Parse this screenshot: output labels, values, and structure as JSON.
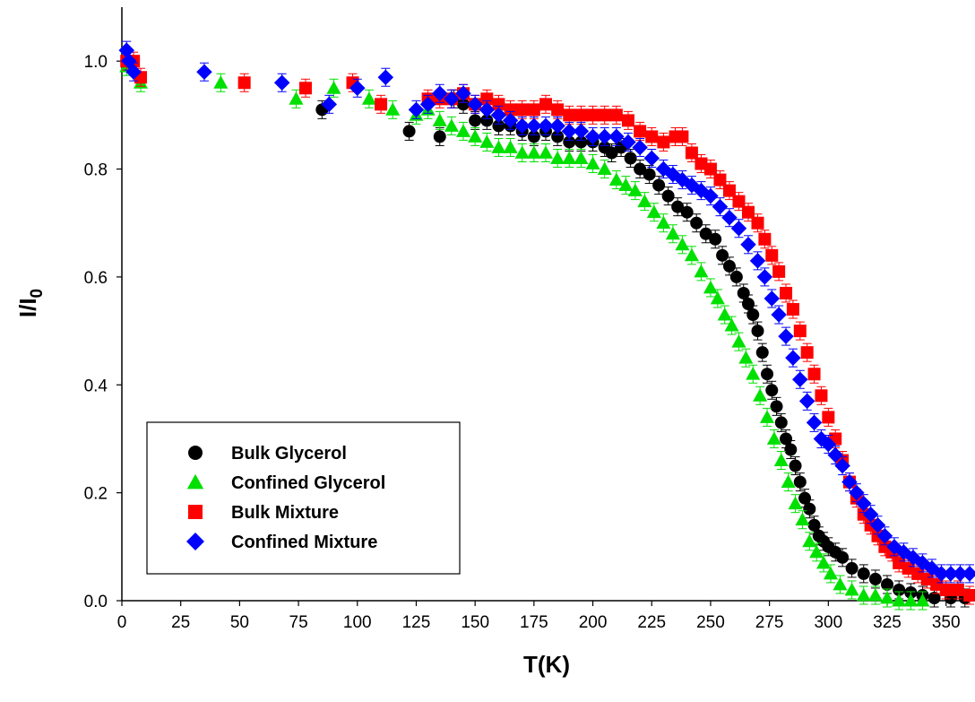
{
  "chart_data": {
    "type": "scatter",
    "title": "",
    "xlabel": "T(K)",
    "ylabel_main": "I/I",
    "ylabel_sub": "0",
    "xlim": [
      0,
      360
    ],
    "ylim": [
      0,
      1.1
    ],
    "xticks": [
      0,
      25,
      50,
      75,
      100,
      125,
      150,
      175,
      200,
      225,
      250,
      275,
      300,
      325,
      350
    ],
    "yticks": [
      0.0,
      0.2,
      0.4,
      0.6,
      0.8,
      1.0
    ],
    "ytick_labels": [
      "0.0",
      "0.2",
      "0.4",
      "0.6",
      "0.8",
      "1.0"
    ],
    "grid": false,
    "legend_position": "bottom-left",
    "series": [
      {
        "name": "Bulk Glycerol",
        "marker": "circle",
        "color": "#000000",
        "points": [
          [
            2,
            1.0
          ],
          [
            85,
            0.91
          ],
          [
            122,
            0.87
          ],
          [
            135,
            0.86
          ],
          [
            141,
            0.93
          ],
          [
            145,
            0.92
          ],
          [
            150,
            0.89
          ],
          [
            155,
            0.89
          ],
          [
            160,
            0.88
          ],
          [
            165,
            0.88
          ],
          [
            170,
            0.87
          ],
          [
            175,
            0.86
          ],
          [
            180,
            0.87
          ],
          [
            185,
            0.86
          ],
          [
            190,
            0.85
          ],
          [
            195,
            0.85
          ],
          [
            200,
            0.85
          ],
          [
            205,
            0.84
          ],
          [
            208,
            0.83
          ],
          [
            212,
            0.84
          ],
          [
            216,
            0.82
          ],
          [
            220,
            0.8
          ],
          [
            224,
            0.79
          ],
          [
            228,
            0.77
          ],
          [
            232,
            0.75
          ],
          [
            236,
            0.73
          ],
          [
            240,
            0.72
          ],
          [
            244,
            0.7
          ],
          [
            248,
            0.68
          ],
          [
            252,
            0.67
          ],
          [
            255,
            0.64
          ],
          [
            258,
            0.62
          ],
          [
            261,
            0.6
          ],
          [
            264,
            0.57
          ],
          [
            266,
            0.55
          ],
          [
            268,
            0.53
          ],
          [
            270,
            0.5
          ],
          [
            272,
            0.46
          ],
          [
            274,
            0.42
          ],
          [
            276,
            0.39
          ],
          [
            278,
            0.36
          ],
          [
            280,
            0.33
          ],
          [
            282,
            0.3
          ],
          [
            284,
            0.28
          ],
          [
            286,
            0.25
          ],
          [
            288,
            0.22
          ],
          [
            290,
            0.19
          ],
          [
            292,
            0.17
          ],
          [
            294,
            0.14
          ],
          [
            296,
            0.12
          ],
          [
            298,
            0.11
          ],
          [
            300,
            0.1
          ],
          [
            303,
            0.09
          ],
          [
            306,
            0.08
          ],
          [
            310,
            0.06
          ],
          [
            315,
            0.05
          ],
          [
            320,
            0.04
          ],
          [
            325,
            0.03
          ],
          [
            330,
            0.02
          ],
          [
            335,
            0.015
          ],
          [
            340,
            0.01
          ],
          [
            345,
            0.005
          ],
          [
            352,
            0.005
          ],
          [
            358,
            0.005
          ]
        ]
      },
      {
        "name": "Confined Glycerol",
        "marker": "triangle",
        "color": "#00e000",
        "points": [
          [
            2,
            0.99
          ],
          [
            8,
            0.96
          ],
          [
            42,
            0.96
          ],
          [
            74,
            0.93
          ],
          [
            90,
            0.95
          ],
          [
            105,
            0.93
          ],
          [
            115,
            0.91
          ],
          [
            125,
            0.9
          ],
          [
            130,
            0.91
          ],
          [
            135,
            0.89
          ],
          [
            140,
            0.88
          ],
          [
            145,
            0.87
          ],
          [
            150,
            0.86
          ],
          [
            155,
            0.85
          ],
          [
            160,
            0.84
          ],
          [
            165,
            0.84
          ],
          [
            170,
            0.83
          ],
          [
            175,
            0.83
          ],
          [
            180,
            0.83
          ],
          [
            185,
            0.82
          ],
          [
            190,
            0.82
          ],
          [
            195,
            0.82
          ],
          [
            200,
            0.81
          ],
          [
            205,
            0.8
          ],
          [
            210,
            0.78
          ],
          [
            214,
            0.77
          ],
          [
            218,
            0.76
          ],
          [
            222,
            0.74
          ],
          [
            226,
            0.72
          ],
          [
            230,
            0.7
          ],
          [
            234,
            0.68
          ],
          [
            238,
            0.66
          ],
          [
            242,
            0.64
          ],
          [
            246,
            0.61
          ],
          [
            250,
            0.58
          ],
          [
            253,
            0.56
          ],
          [
            256,
            0.53
          ],
          [
            259,
            0.51
          ],
          [
            262,
            0.48
          ],
          [
            265,
            0.45
          ],
          [
            268,
            0.42
          ],
          [
            271,
            0.38
          ],
          [
            274,
            0.34
          ],
          [
            277,
            0.3
          ],
          [
            280,
            0.26
          ],
          [
            283,
            0.22
          ],
          [
            286,
            0.18
          ],
          [
            289,
            0.15
          ],
          [
            292,
            0.11
          ],
          [
            295,
            0.09
          ],
          [
            298,
            0.07
          ],
          [
            301,
            0.05
          ],
          [
            305,
            0.03
          ],
          [
            310,
            0.02
          ],
          [
            315,
            0.01
          ],
          [
            320,
            0.01
          ],
          [
            325,
            0.005
          ],
          [
            330,
            0.0
          ],
          [
            335,
            0.0
          ],
          [
            340,
            0.0
          ]
        ]
      },
      {
        "name": "Bulk Mixture",
        "marker": "square",
        "color": "#ff0000",
        "points": [
          [
            2,
            1.0
          ],
          [
            5,
            1.0
          ],
          [
            8,
            0.97
          ],
          [
            52,
            0.96
          ],
          [
            78,
            0.95
          ],
          [
            98,
            0.96
          ],
          [
            110,
            0.92
          ],
          [
            130,
            0.93
          ],
          [
            135,
            0.93
          ],
          [
            140,
            0.93
          ],
          [
            145,
            0.94
          ],
          [
            150,
            0.92
          ],
          [
            155,
            0.93
          ],
          [
            160,
            0.92
          ],
          [
            165,
            0.91
          ],
          [
            170,
            0.91
          ],
          [
            175,
            0.91
          ],
          [
            180,
            0.92
          ],
          [
            185,
            0.91
          ],
          [
            190,
            0.9
          ],
          [
            195,
            0.9
          ],
          [
            200,
            0.9
          ],
          [
            205,
            0.9
          ],
          [
            210,
            0.9
          ],
          [
            215,
            0.89
          ],
          [
            220,
            0.87
          ],
          [
            225,
            0.86
          ],
          [
            230,
            0.85
          ],
          [
            235,
            0.86
          ],
          [
            238,
            0.86
          ],
          [
            242,
            0.83
          ],
          [
            246,
            0.81
          ],
          [
            250,
            0.8
          ],
          [
            254,
            0.78
          ],
          [
            258,
            0.76
          ],
          [
            262,
            0.74
          ],
          [
            266,
            0.72
          ],
          [
            270,
            0.7
          ],
          [
            273,
            0.67
          ],
          [
            276,
            0.64
          ],
          [
            279,
            0.61
          ],
          [
            282,
            0.57
          ],
          [
            285,
            0.54
          ],
          [
            288,
            0.5
          ],
          [
            291,
            0.46
          ],
          [
            294,
            0.42
          ],
          [
            297,
            0.38
          ],
          [
            300,
            0.34
          ],
          [
            303,
            0.3
          ],
          [
            306,
            0.26
          ],
          [
            309,
            0.22
          ],
          [
            312,
            0.19
          ],
          [
            315,
            0.16
          ],
          [
            318,
            0.14
          ],
          [
            321,
            0.12
          ],
          [
            324,
            0.1
          ],
          [
            327,
            0.09
          ],
          [
            330,
            0.07
          ],
          [
            334,
            0.06
          ],
          [
            338,
            0.05
          ],
          [
            342,
            0.04
          ],
          [
            346,
            0.03
          ],
          [
            350,
            0.02
          ],
          [
            355,
            0.02
          ],
          [
            360,
            0.01
          ]
        ]
      },
      {
        "name": "Confined Mixture",
        "marker": "diamond",
        "color": "#0000ff",
        "points": [
          [
            2,
            1.02
          ],
          [
            3,
            1.0
          ],
          [
            5,
            0.98
          ],
          [
            35,
            0.98
          ],
          [
            68,
            0.96
          ],
          [
            88,
            0.92
          ],
          [
            100,
            0.95
          ],
          [
            112,
            0.97
          ],
          [
            125,
            0.91
          ],
          [
            130,
            0.92
          ],
          [
            135,
            0.94
          ],
          [
            140,
            0.93
          ],
          [
            145,
            0.94
          ],
          [
            150,
            0.92
          ],
          [
            155,
            0.91
          ],
          [
            160,
            0.9
          ],
          [
            165,
            0.89
          ],
          [
            170,
            0.88
          ],
          [
            175,
            0.88
          ],
          [
            180,
            0.88
          ],
          [
            185,
            0.88
          ],
          [
            190,
            0.87
          ],
          [
            195,
            0.87
          ],
          [
            200,
            0.86
          ],
          [
            205,
            0.86
          ],
          [
            210,
            0.86
          ],
          [
            215,
            0.85
          ],
          [
            220,
            0.84
          ],
          [
            225,
            0.82
          ],
          [
            230,
            0.8
          ],
          [
            234,
            0.79
          ],
          [
            238,
            0.78
          ],
          [
            242,
            0.77
          ],
          [
            246,
            0.76
          ],
          [
            250,
            0.75
          ],
          [
            254,
            0.73
          ],
          [
            258,
            0.71
          ],
          [
            262,
            0.69
          ],
          [
            266,
            0.66
          ],
          [
            270,
            0.63
          ],
          [
            273,
            0.6
          ],
          [
            276,
            0.56
          ],
          [
            279,
            0.53
          ],
          [
            282,
            0.49
          ],
          [
            285,
            0.45
          ],
          [
            288,
            0.41
          ],
          [
            291,
            0.37
          ],
          [
            294,
            0.33
          ],
          [
            297,
            0.3
          ],
          [
            300,
            0.29
          ],
          [
            303,
            0.27
          ],
          [
            306,
            0.25
          ],
          [
            309,
            0.22
          ],
          [
            312,
            0.2
          ],
          [
            315,
            0.18
          ],
          [
            318,
            0.16
          ],
          [
            321,
            0.14
          ],
          [
            324,
            0.12
          ],
          [
            328,
            0.1
          ],
          [
            332,
            0.09
          ],
          [
            336,
            0.08
          ],
          [
            340,
            0.07
          ],
          [
            344,
            0.06
          ],
          [
            348,
            0.05
          ],
          [
            352,
            0.05
          ],
          [
            356,
            0.05
          ],
          [
            360,
            0.05
          ]
        ]
      }
    ]
  }
}
